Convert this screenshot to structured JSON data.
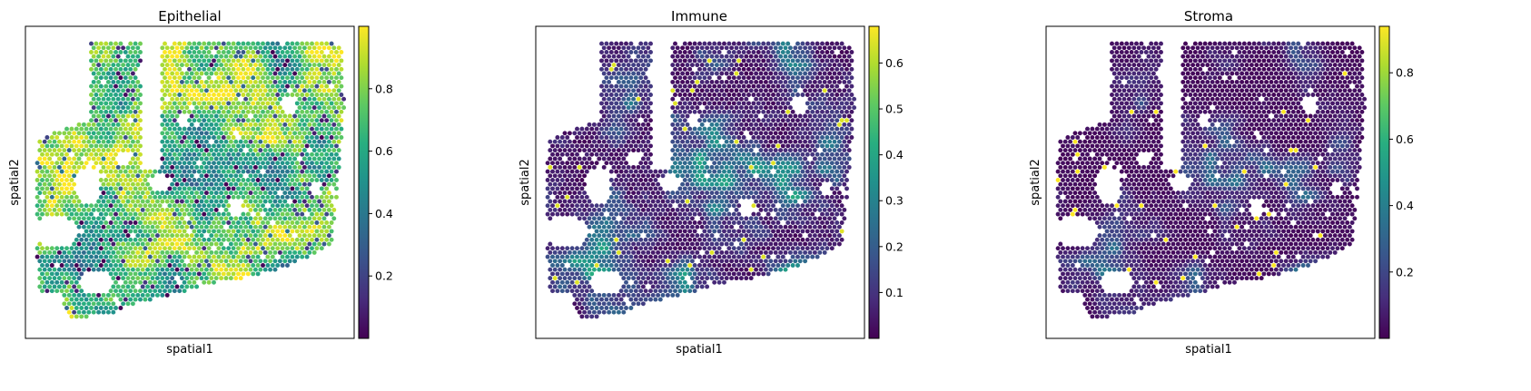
{
  "chart_data": [
    {
      "type": "scatter",
      "title": "Epithelial",
      "xlabel": "spatial1",
      "ylabel": "spatial2",
      "colormap": "viridis",
      "colorbar": {
        "range": [
          0.0,
          1.0
        ],
        "ticks": [
          0.2,
          0.4,
          0.6,
          0.8
        ],
        "tick_labels": [
          "0.2",
          "0.4",
          "0.6",
          "0.8"
        ]
      },
      "value_summary": {
        "typical": 0.8,
        "min_shown": 0.05,
        "max_shown": 1.0
      }
    },
    {
      "type": "scatter",
      "title": "Immune",
      "xlabel": "spatial1",
      "ylabel": "spatial2",
      "colormap": "viridis",
      "colorbar": {
        "range": [
          0.0,
          0.68
        ],
        "ticks": [
          0.1,
          0.2,
          0.3,
          0.4,
          0.5,
          0.6
        ],
        "tick_labels": [
          "0.1",
          "0.2",
          "0.3",
          "0.4",
          "0.5",
          "0.6"
        ]
      },
      "value_summary": {
        "typical": 0.05,
        "min_shown": 0.0,
        "max_shown": 0.68
      }
    },
    {
      "type": "scatter",
      "title": "Stroma",
      "xlabel": "spatial1",
      "ylabel": "spatial2",
      "colormap": "viridis",
      "colorbar": {
        "range": [
          0.0,
          0.94
        ],
        "ticks": [
          0.2,
          0.4,
          0.6,
          0.8
        ],
        "tick_labels": [
          "0.2",
          "0.4",
          "0.6",
          "0.8"
        ]
      },
      "value_summary": {
        "typical": 0.05,
        "min_shown": 0.0,
        "max_shown": 0.94
      }
    }
  ]
}
